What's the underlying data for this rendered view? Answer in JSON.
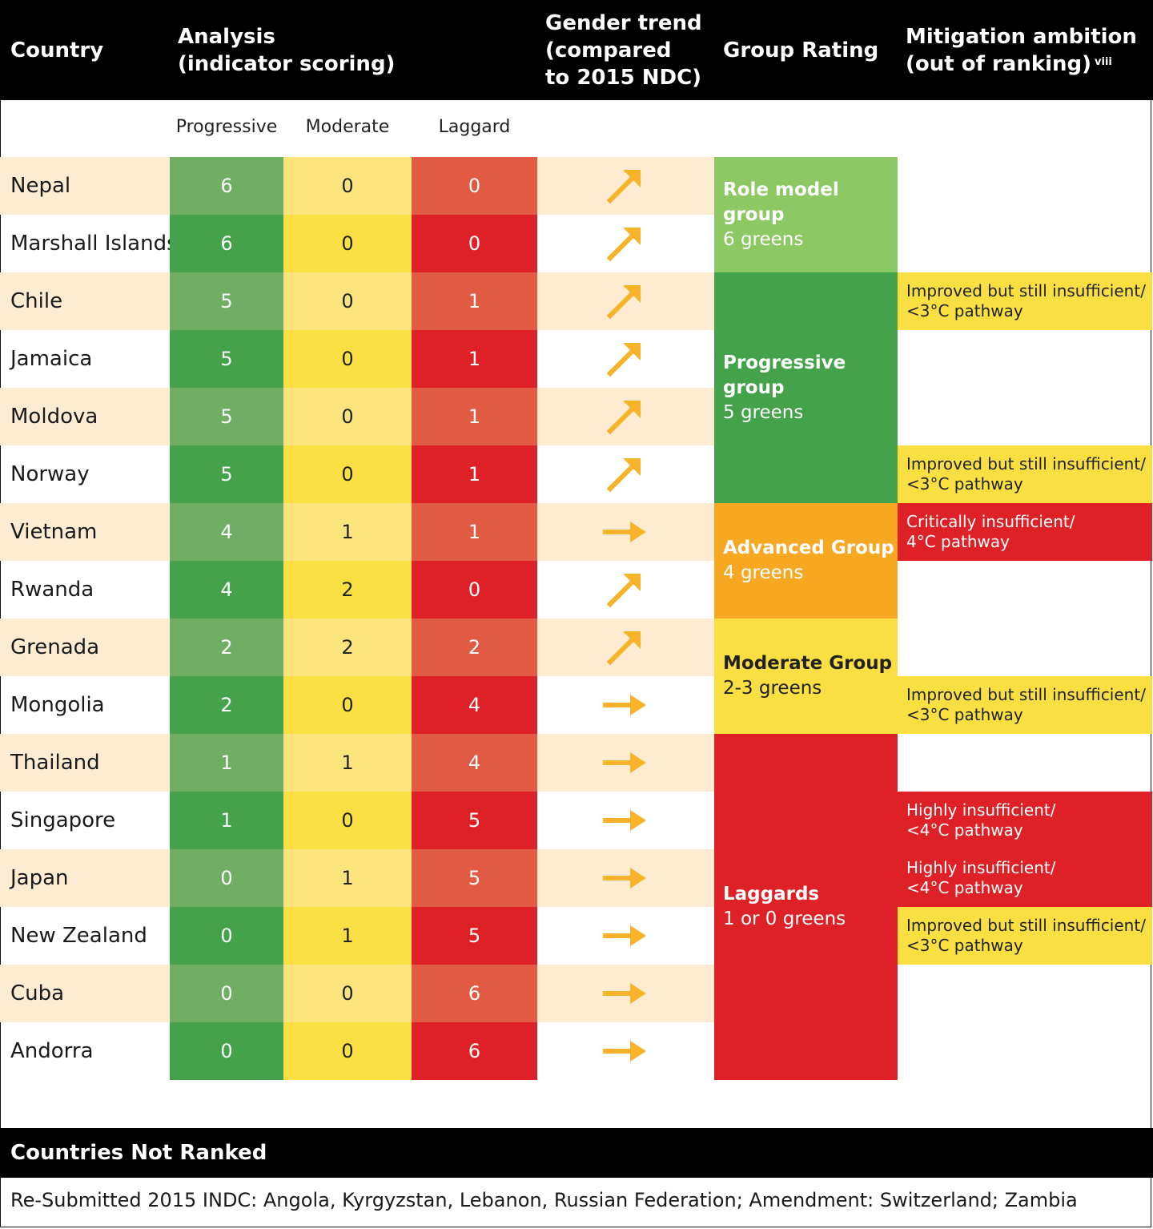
{
  "header": {
    "country": "Country",
    "analysis": "Analysis\n(indicator scoring)",
    "gender_trend": "Gender trend\n(compared\nto 2015 NDC)",
    "group_rating": "Group Rating",
    "mitigation": "Mitigation ambition\n(out of ranking)",
    "mitigation_note": "viii"
  },
  "subheaders": {
    "progressive": "Progressive",
    "moderate": "Moderate",
    "laggard": "Laggard"
  },
  "colors": {
    "prog_a": "#6fae63",
    "prog_b": "#43a24a",
    "mod_a": "#fbe47c",
    "mod_b": "#f9df42",
    "lag_a": "#e05a44",
    "lag_b": "#dd2127",
    "band": "#fdebd2",
    "arrow": "#f8b32a",
    "role": "#8cc863",
    "progressive": "#43a24a",
    "advanced": "#f7a823",
    "moderate_grp": "#f9df42",
    "laggards": "#dd2127",
    "mit_yellow": "#f9df42",
    "mit_red": "#dd2127"
  },
  "rows": [
    {
      "country": "Nepal",
      "progressive": "6",
      "moderate": "0",
      "laggard": "0",
      "trend": "up"
    },
    {
      "country": "Marshall Islands",
      "progressive": "6",
      "moderate": "0",
      "laggard": "0",
      "trend": "up"
    },
    {
      "country": "Chile",
      "progressive": "5",
      "moderate": "0",
      "laggard": "1",
      "trend": "up"
    },
    {
      "country": "Jamaica",
      "progressive": "5",
      "moderate": "0",
      "laggard": "1",
      "trend": "up"
    },
    {
      "country": "Moldova",
      "progressive": "5",
      "moderate": "0",
      "laggard": "1",
      "trend": "up"
    },
    {
      "country": "Norway",
      "progressive": "5",
      "moderate": "0",
      "laggard": "1",
      "trend": "up"
    },
    {
      "country": "Vietnam",
      "progressive": "4",
      "moderate": "1",
      "laggard": "1",
      "trend": "flat"
    },
    {
      "country": "Rwanda",
      "progressive": "4",
      "moderate": "2",
      "laggard": "0",
      "trend": "up"
    },
    {
      "country": "Grenada",
      "progressive": "2",
      "moderate": "2",
      "laggard": "2",
      "trend": "up"
    },
    {
      "country": "Mongolia",
      "progressive": "2",
      "moderate": "0",
      "laggard": "4",
      "trend": "flat"
    },
    {
      "country": "Thailand",
      "progressive": "1",
      "moderate": "1",
      "laggard": "4",
      "trend": "flat"
    },
    {
      "country": "Singapore",
      "progressive": "1",
      "moderate": "0",
      "laggard": "5",
      "trend": "flat"
    },
    {
      "country": "Japan",
      "progressive": "0",
      "moderate": "1",
      "laggard": "5",
      "trend": "flat"
    },
    {
      "country": "New Zealand",
      "progressive": "0",
      "moderate": "1",
      "laggard": "5",
      "trend": "flat"
    },
    {
      "country": "Cuba",
      "progressive": "0",
      "moderate": "0",
      "laggard": "6",
      "trend": "flat"
    },
    {
      "country": "Andorra",
      "progressive": "0",
      "moderate": "0",
      "laggard": "6",
      "trend": "flat"
    }
  ],
  "groups": [
    {
      "title": "Role model group",
      "subtitle": "6 greens",
      "color": "role",
      "text_color": "#ffffff"
    },
    {
      "title": "Progressive group",
      "subtitle": "5 greens",
      "color": "progressive",
      "text_color": "#ffffff"
    },
    {
      "title": "Advanced Group",
      "subtitle": "4 greens",
      "color": "advanced",
      "text_color": "#ffffff"
    },
    {
      "title": "Moderate Group",
      "subtitle": "2-3 greens",
      "color": "moderate_grp",
      "text_color": "#222222"
    },
    {
      "title": "Laggards",
      "subtitle": "1 or 0 greens",
      "color": "laggards",
      "text_color": "#ffffff"
    }
  ],
  "mitigation": [
    {
      "text": "Improved but still insufficient/\n<3°C pathway",
      "color": "mit_yellow",
      "text_color": "#222222"
    },
    {
      "text": "Improved but still insufficient/\n<3°C pathway",
      "color": "mit_yellow",
      "text_color": "#222222"
    },
    {
      "text": "Critically insufficient/\n4°C pathway",
      "color": "mit_red",
      "text_color": "#ffffff"
    },
    {
      "text": "Improved but still insufficient/\n<3°C pathway",
      "color": "mit_yellow",
      "text_color": "#222222"
    },
    {
      "text": "Highly insufficient/\n<4°C pathway",
      "color": "mit_red",
      "text_color": "#ffffff"
    },
    {
      "text": "Highly insufficient/\n<4°C pathway",
      "color": "mit_red",
      "text_color": "#ffffff"
    },
    {
      "text": "Improved but still insufficient/\n<3°C pathway",
      "color": "mit_yellow",
      "text_color": "#222222"
    }
  ],
  "not_ranked": {
    "title": "Countries Not Ranked",
    "text": "Re-Submitted 2015 INDC: Angola, Kyrgyzstan, Lebanon, Russian Federation; Amendment: Switzerland; Zambia"
  }
}
